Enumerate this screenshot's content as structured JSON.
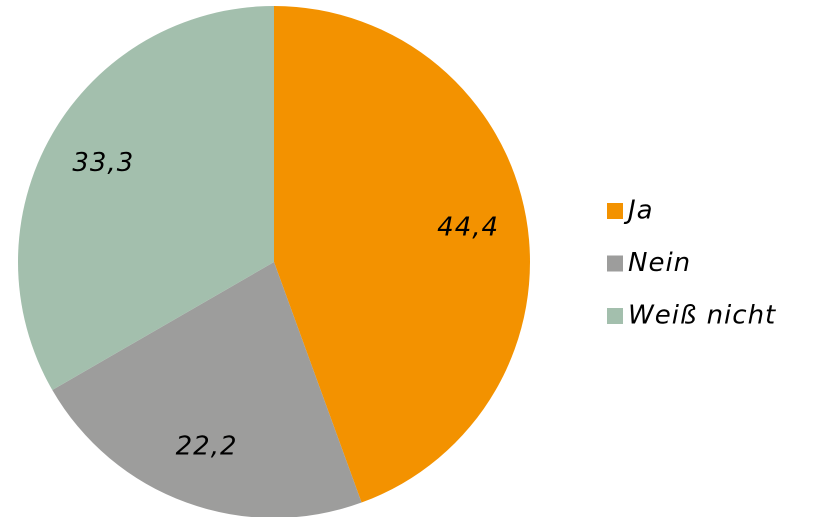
{
  "chart_data": {
    "type": "pie",
    "categories": [
      "Ja",
      "Nein",
      "Weiß nicht"
    ],
    "values": [
      44.4,
      22.2,
      33.3
    ],
    "value_labels": [
      "44,4",
      "22,2",
      "33,3"
    ],
    "colors": [
      "#f39200",
      "#9d9d9c",
      "#a3bfad"
    ],
    "legend": "right"
  }
}
